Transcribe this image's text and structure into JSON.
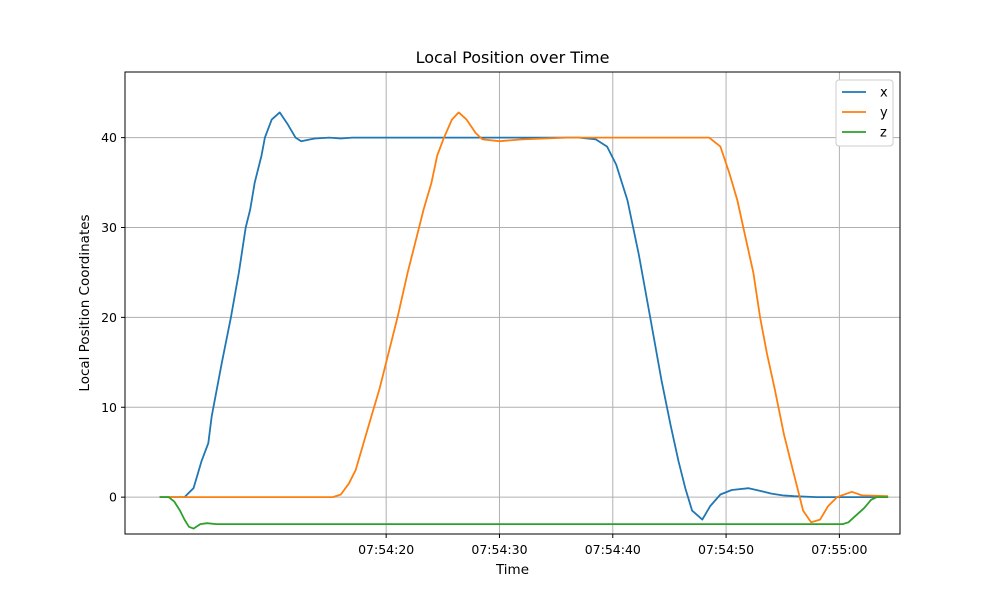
{
  "chart_data": {
    "type": "line",
    "title": "Local Position over Time",
    "xlabel": "Time",
    "ylabel": "Local Position Coordinates",
    "x_ticks": [
      "07:54:20",
      "07:54:30",
      "07:54:40",
      "07:54:50",
      "07:55:00"
    ],
    "x_tick_values": [
      20,
      30,
      40,
      50,
      60
    ],
    "xlim": [
      -3.05,
      65.35
    ],
    "ylim": [
      -4.1,
      47.3
    ],
    "y_ticks": [
      0,
      10,
      20,
      30,
      40
    ],
    "grid": true,
    "legend_position": "top-right",
    "series": [
      {
        "name": "x",
        "color": "#1f77b4",
        "points": [
          [
            0,
            0
          ],
          [
            2.2,
            0
          ],
          [
            3.0,
            1
          ],
          [
            3.7,
            4
          ],
          [
            4.3,
            6
          ],
          [
            4.6,
            9
          ],
          [
            5.5,
            15
          ],
          [
            6.3,
            20
          ],
          [
            7.0,
            25
          ],
          [
            7.6,
            30
          ],
          [
            8.0,
            32
          ],
          [
            8.4,
            35
          ],
          [
            9.0,
            38
          ],
          [
            9.3,
            40
          ],
          [
            9.9,
            42
          ],
          [
            10.6,
            42.8
          ],
          [
            11.3,
            41.5
          ],
          [
            12.0,
            40
          ],
          [
            12.5,
            39.6
          ],
          [
            13.3,
            39.8
          ],
          [
            13.7,
            39.9
          ],
          [
            15,
            40
          ],
          [
            16,
            39.9
          ],
          [
            17,
            40
          ],
          [
            19,
            40
          ],
          [
            21,
            40
          ],
          [
            23,
            40
          ],
          [
            25,
            40
          ],
          [
            27,
            40
          ],
          [
            29,
            40
          ],
          [
            31,
            40
          ],
          [
            33,
            40
          ],
          [
            35,
            40
          ],
          [
            37,
            40
          ],
          [
            38.5,
            39.8
          ],
          [
            39.5,
            39
          ],
          [
            40.3,
            37
          ],
          [
            41.3,
            33
          ],
          [
            42.3,
            27
          ],
          [
            43.3,
            20
          ],
          [
            44.3,
            13
          ],
          [
            45.1,
            8
          ],
          [
            45.8,
            4
          ],
          [
            46.4,
            1
          ],
          [
            47.0,
            -1.5
          ],
          [
            47.9,
            -2.5
          ],
          [
            48.6,
            -1.0
          ],
          [
            49.5,
            0.3
          ],
          [
            50.5,
            0.8
          ],
          [
            52,
            1
          ],
          [
            53,
            0.7
          ],
          [
            54,
            0.4
          ],
          [
            55,
            0.2
          ],
          [
            56,
            0.1
          ],
          [
            58,
            0
          ],
          [
            60,
            0
          ],
          [
            62,
            0
          ],
          [
            64.3,
            0
          ]
        ]
      },
      {
        "name": "y",
        "color": "#ff7f0e",
        "points": [
          [
            0,
            0
          ],
          [
            3,
            0
          ],
          [
            5,
            0
          ],
          [
            8,
            0
          ],
          [
            10,
            0
          ],
          [
            12,
            0
          ],
          [
            14,
            0
          ],
          [
            15.3,
            0
          ],
          [
            16,
            0.3
          ],
          [
            16.7,
            1.5
          ],
          [
            17.3,
            3
          ],
          [
            18,
            6
          ],
          [
            18.7,
            9
          ],
          [
            19.4,
            12
          ],
          [
            20,
            15
          ],
          [
            21.0,
            20
          ],
          [
            21.9,
            25
          ],
          [
            22.7,
            29
          ],
          [
            23.3,
            32
          ],
          [
            24.0,
            35
          ],
          [
            24.5,
            38
          ],
          [
            25.1,
            40
          ],
          [
            25.8,
            42
          ],
          [
            26.4,
            42.8
          ],
          [
            27.1,
            42
          ],
          [
            27.9,
            40.5
          ],
          [
            28.5,
            39.8
          ],
          [
            30,
            39.6
          ],
          [
            32,
            39.8
          ],
          [
            34,
            39.9
          ],
          [
            36,
            40
          ],
          [
            38,
            40
          ],
          [
            40,
            40
          ],
          [
            42,
            40
          ],
          [
            44,
            40
          ],
          [
            46,
            40
          ],
          [
            47.5,
            40
          ],
          [
            48.5,
            40
          ],
          [
            49.5,
            39
          ],
          [
            50.3,
            36
          ],
          [
            51.0,
            33
          ],
          [
            51.7,
            29
          ],
          [
            52.4,
            25
          ],
          [
            53.0,
            20
          ],
          [
            53.6,
            16
          ],
          [
            54.3,
            12
          ],
          [
            55.1,
            7
          ],
          [
            55.9,
            3
          ],
          [
            56.4,
            0.5
          ],
          [
            56.8,
            -1.5
          ],
          [
            57.5,
            -2.8
          ],
          [
            58.3,
            -2.5
          ],
          [
            59.0,
            -1
          ],
          [
            59.8,
            0
          ],
          [
            61.1,
            0.6
          ],
          [
            62,
            0.2
          ],
          [
            64.3,
            0.1
          ]
        ]
      },
      {
        "name": "z",
        "color": "#2ca02c",
        "points": [
          [
            0,
            0
          ],
          [
            0.8,
            0
          ],
          [
            1.3,
            -0.5
          ],
          [
            1.8,
            -1.5
          ],
          [
            2.2,
            -2.5
          ],
          [
            2.6,
            -3.3
          ],
          [
            3.0,
            -3.5
          ],
          [
            3.6,
            -3.0
          ],
          [
            4.2,
            -2.9
          ],
          [
            5,
            -3
          ],
          [
            8,
            -3
          ],
          [
            12,
            -3
          ],
          [
            20,
            -3
          ],
          [
            30,
            -3
          ],
          [
            40,
            -3
          ],
          [
            50,
            -3
          ],
          [
            55,
            -3
          ],
          [
            58,
            -3
          ],
          [
            60.3,
            -3
          ],
          [
            60.8,
            -2.8
          ],
          [
            61.5,
            -2
          ],
          [
            62.2,
            -1.2
          ],
          [
            62.8,
            -0.3
          ],
          [
            63.3,
            0
          ],
          [
            64.3,
            0
          ]
        ]
      }
    ]
  }
}
